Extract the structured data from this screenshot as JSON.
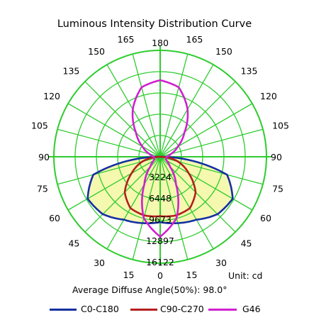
{
  "chart_data": {
    "type": "polar",
    "title": "Luminous Intensity Distribution Curve",
    "unit_label": "Unit: cd",
    "diffuse_label": "Average Diffuse Angle(50%): 98.0°",
    "angle_labels": {
      "right": [
        "0",
        "15",
        "30",
        "45",
        "60",
        "75",
        "90",
        "105",
        "120",
        "135",
        "150",
        "165",
        "180"
      ],
      "left": [
        "15",
        "30",
        "45",
        "60",
        "75",
        "90",
        "105",
        "120",
        "135",
        "150",
        "165"
      ]
    },
    "radial_ticks": [
      "3224",
      "6448",
      "9673",
      "12897",
      "16122"
    ],
    "radial_max": 16122,
    "grid": true,
    "colors": {
      "grid": "#2ecc2e",
      "fill": "#f4f7a6",
      "background_disk": "#ffffff"
    },
    "angles_deg": [
      0,
      15,
      30,
      45,
      60,
      75,
      90,
      105,
      120,
      135,
      150,
      165,
      180
    ],
    "series": [
      {
        "name": "C0-C180",
        "color": "#1530a0",
        "values": [
          9900,
          10400,
          11000,
          12300,
          12700,
          10500,
          0,
          0,
          0,
          0,
          0,
          0,
          0
        ]
      },
      {
        "name": "C90-C270",
        "color": "#b41e1e",
        "values": [
          9000,
          9200,
          9000,
          7600,
          5000,
          2800,
          0,
          0,
          0,
          0,
          0,
          0,
          0
        ]
      },
      {
        "name": "G46",
        "color": "#d020d0",
        "values": [
          12100,
          9600,
          4800,
          2100,
          1100,
          900,
          1000,
          1700,
          3100,
          5200,
          8300,
          10900,
          11600
        ]
      }
    ]
  }
}
